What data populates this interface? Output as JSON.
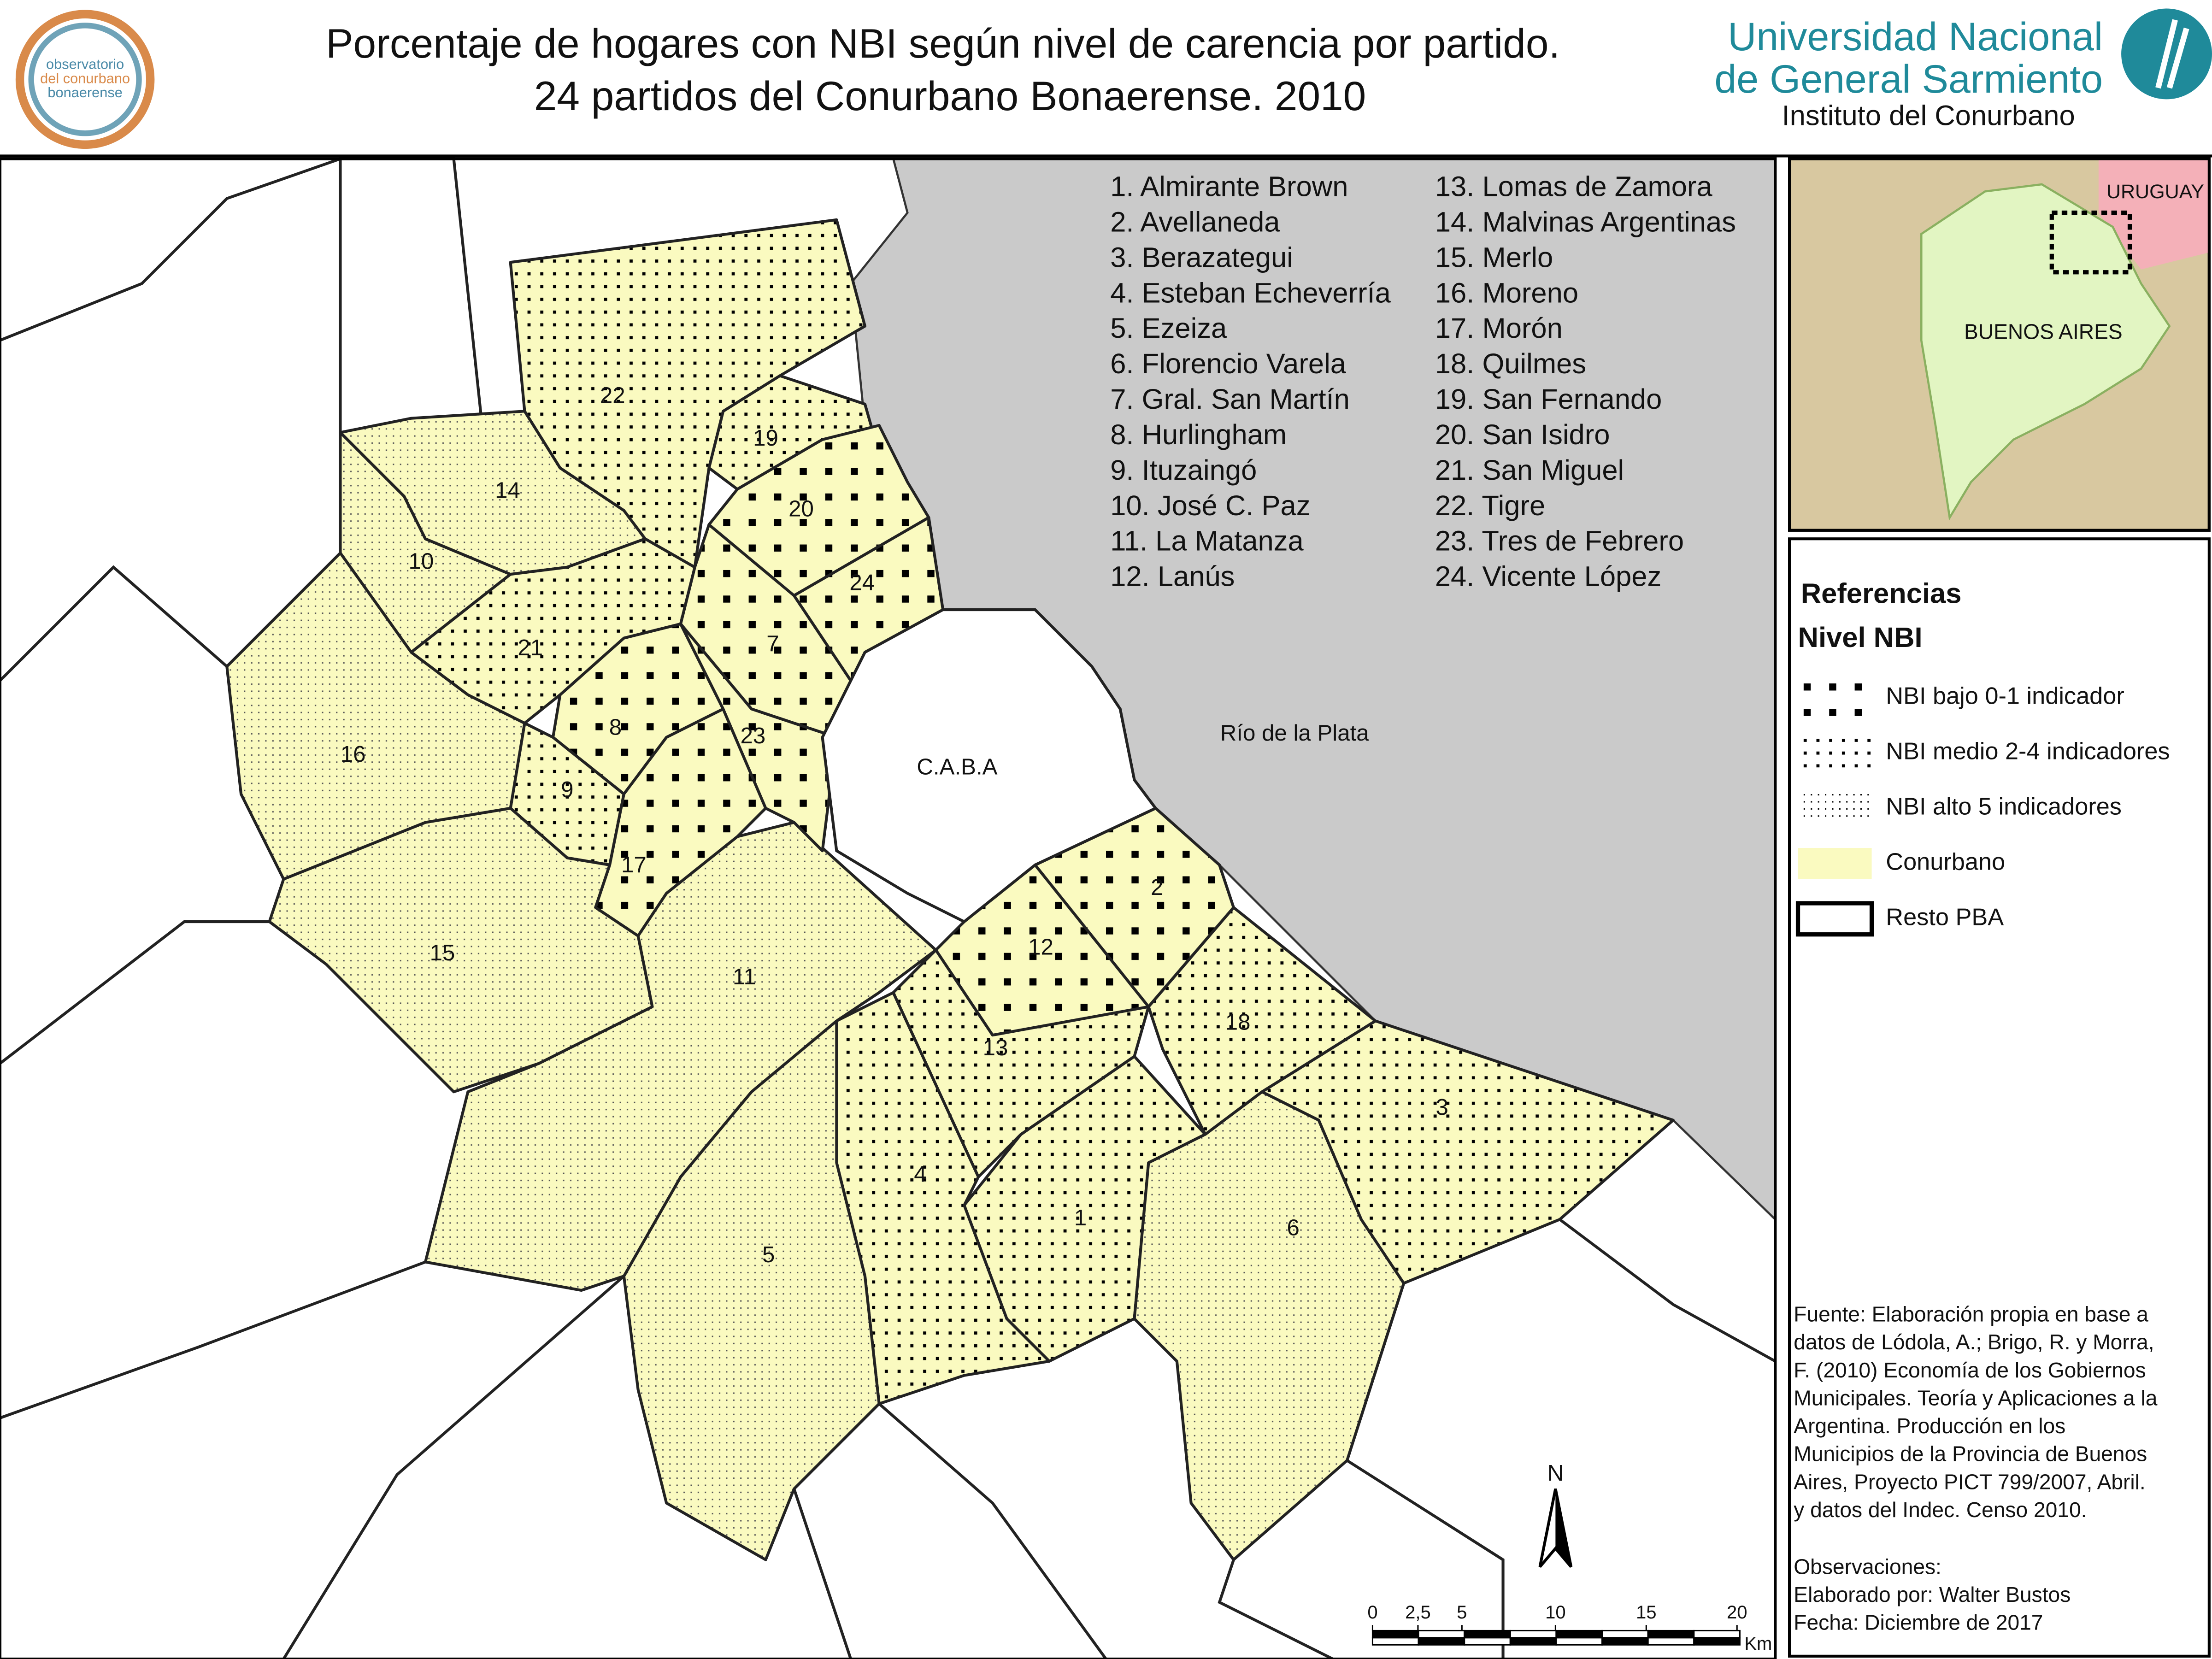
{
  "header": {
    "title_lines": [
      "Porcentaje de hogares  con NBI según nivel de carencia por partido.",
      "24 partidos del Conurbano Bonaerense. 2010"
    ],
    "university": [
      "Universidad Nacional",
      "de General Sarmiento"
    ],
    "institute": "Instituto del Conurbano",
    "logo_text": [
      "observatorio",
      "del conurbano",
      "bonaerense"
    ]
  },
  "partidos": [
    "1. Almirante Brown",
    "2. Avellaneda",
    "3. Berazategui",
    "4. Esteban Echeverría",
    "5. Ezeiza",
    "6. Florencio Varela",
    "7. Gral. San Martín",
    "8. Hurlingham",
    "9. Ituzaingó",
    "10. José C. Paz",
    "11. La Matanza",
    "12. Lanús",
    "13. Lomas de Zamora",
    "14. Malvinas Argentinas",
    "15. Merlo",
    "16. Moreno",
    "17. Morón",
    "18. Quilmes",
    "19. San Fernando",
    "20. San Isidro",
    "21. San Miguel",
    "22. Tigre",
    "23. Tres de Febrero",
    "24. Vicente López"
  ],
  "map_labels": [
    "1",
    "2",
    "3",
    "4",
    "5",
    "6",
    "7",
    "8",
    "9",
    "10",
    "11",
    "12",
    "13",
    "14",
    "15",
    "16",
    "17",
    "18",
    "19",
    "20",
    "21",
    "22",
    "23",
    "24"
  ],
  "places": {
    "river": "Río de la Plata",
    "caba": "C.A.B.A"
  },
  "inset": {
    "labels": [
      "URUGUAY",
      "BUENOS AIRES"
    ]
  },
  "legend": {
    "title": "Referencias",
    "subtitle": "Nivel NBI",
    "items": [
      "NBI bajo 0-1 indicador",
      "NBI medio 2-4 indicadores",
      "NBI alto 5 indicadores",
      "Conurbano",
      "Resto PBA"
    ]
  },
  "source": [
    "Fuente: Elaboración propia en base a",
    "datos de Lódola, A.; Brigo, R. y Morra,",
    "F. (2010) Economía de los Gobiernos",
    "Municipales. Teoría y Aplicaciones a la",
    " Argentina. Producción en los",
    "Municipios de la Provincia de Buenos",
    "Aires, Proyecto PICT 799/2007, Abril.",
    "y datos del Indec. Censo 2010."
  ],
  "observations": [
    "Observaciones:",
    "Elaborado por: Walter Bustos",
    "Fecha: Diciembre de 2017"
  ],
  "scale": {
    "north": "N",
    "ticks": [
      "0",
      "2,5",
      "5",
      "10",
      "15",
      "20"
    ],
    "unit": "Km"
  }
}
